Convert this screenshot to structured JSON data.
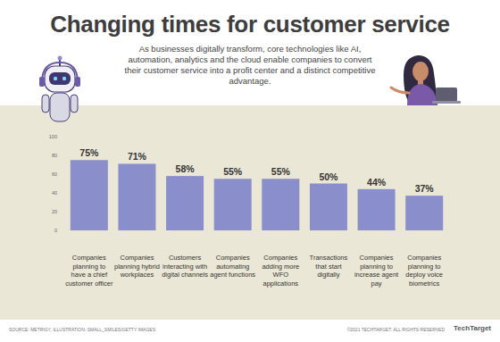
{
  "chart_data": {
    "type": "bar",
    "title": "Changing times for customer service",
    "subtitle": "As businesses digitally transform, core technologies like AI, automation, analytics and the cloud enable companies to convert their customer service into a profit center and a distinct competitive advantage.",
    "categories": [
      "Companies planning to have a chief customer officer",
      "Companies planning hybrid workplaces",
      "Customers interacting with digital channels",
      "Companies automating agent functions",
      "Companies adding more WFO applications",
      "Transactions that start digitally",
      "Companies planning to increase agent pay",
      "Companies planning to deploy voice biometrics"
    ],
    "values": [
      75,
      71,
      58,
      55,
      55,
      50,
      44,
      37
    ],
    "value_labels": [
      "75%",
      "71%",
      "58%",
      "55%",
      "55%",
      "50%",
      "44%",
      "37%"
    ],
    "color": "#8a8fcc",
    "ylim": [
      0,
      100
    ],
    "yticks": [
      0,
      20,
      40,
      60,
      80,
      100
    ],
    "grid": false,
    "data_labels": true,
    "annotations": [
      "SOURCE: METRIGY; ILLUSTRATION: SMALL_SMILES/GETTY IMAGES",
      "©2021 TECHTARGET. ALL RIGHTS RESERVED",
      "TechTarget"
    ]
  }
}
